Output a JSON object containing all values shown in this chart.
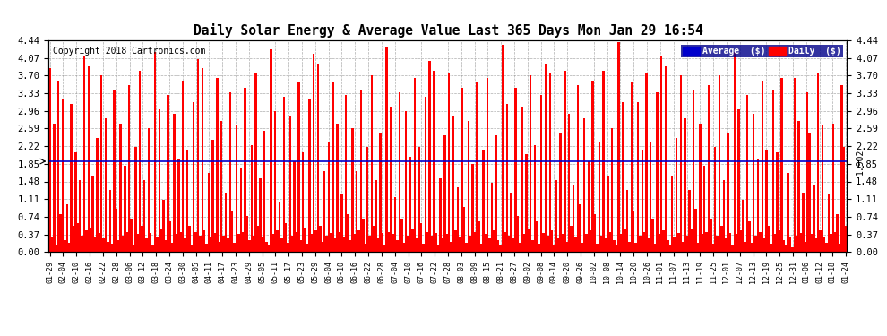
{
  "title": "Daily Solar Energy & Average Value Last 365 Days Mon Jan 29 16:54",
  "copyright": "Copyright 2018 Cartronics.com",
  "average_value": 1.902,
  "average_label": "1.902",
  "y_max": 4.44,
  "y_min": 0.0,
  "y_ticks": [
    0.0,
    0.37,
    0.74,
    1.11,
    1.48,
    1.85,
    2.22,
    2.59,
    2.96,
    3.33,
    3.7,
    4.07,
    4.44
  ],
  "bar_color": "#ff0000",
  "average_line_color": "#0000cc",
  "background_color": "#ffffff",
  "grid_color": "#999999",
  "legend_avg_color": "#0000cc",
  "legend_daily_color": "#ff0000",
  "legend_avg_text": "Average  ($)",
  "legend_daily_text": "Daily  ($)",
  "x_tick_labels": [
    "01-29",
    "02-04",
    "02-10",
    "02-16",
    "02-22",
    "02-28",
    "03-06",
    "03-12",
    "03-18",
    "03-24",
    "03-30",
    "04-05",
    "04-11",
    "04-17",
    "04-23",
    "04-29",
    "05-05",
    "05-11",
    "05-17",
    "05-23",
    "05-29",
    "06-04",
    "06-10",
    "06-16",
    "06-22",
    "06-28",
    "07-04",
    "07-10",
    "07-16",
    "07-22",
    "07-28",
    "08-03",
    "08-09",
    "08-15",
    "08-21",
    "08-27",
    "09-02",
    "09-08",
    "09-14",
    "09-20",
    "09-26",
    "10-02",
    "10-08",
    "10-14",
    "10-20",
    "10-26",
    "11-01",
    "11-07",
    "11-13",
    "11-19",
    "11-25",
    "12-01",
    "12-07",
    "12-13",
    "12-19",
    "12-25",
    "12-31",
    "01-06",
    "01-12",
    "01-18",
    "01-24"
  ],
  "bar_values": [
    3.85,
    0.3,
    2.7,
    0.15,
    3.6,
    0.8,
    3.2,
    0.25,
    1.0,
    0.2,
    3.1,
    0.55,
    2.1,
    0.6,
    1.5,
    0.35,
    4.1,
    0.45,
    3.9,
    0.5,
    1.6,
    0.3,
    2.4,
    0.4,
    3.7,
    0.28,
    2.8,
    0.22,
    1.3,
    0.18,
    3.4,
    0.9,
    0.25,
    2.7,
    0.35,
    1.8,
    0.42,
    3.5,
    0.7,
    0.15,
    2.2,
    0.38,
    3.8,
    0.55,
    1.5,
    0.28,
    2.6,
    0.4,
    0.15,
    4.2,
    0.32,
    3.0,
    0.48,
    1.1,
    0.25,
    3.3,
    0.65,
    0.2,
    2.9,
    0.38,
    1.95,
    0.42,
    3.6,
    0.28,
    2.15,
    0.55,
    0.15,
    3.15,
    0.42,
    4.05,
    0.35,
    3.85,
    0.45,
    0.18,
    1.65,
    0.3,
    2.35,
    0.4,
    3.65,
    0.22,
    2.75,
    0.35,
    1.25,
    0.28,
    3.35,
    0.85,
    0.2,
    2.65,
    0.38,
    1.75,
    0.42,
    3.45,
    0.75,
    0.25,
    2.25,
    0.35,
    3.75,
    0.55,
    1.55,
    0.3,
    2.55,
    0.22,
    0.15,
    4.25,
    0.38,
    2.95,
    0.45,
    1.05,
    0.28,
    3.25,
    0.6,
    0.2,
    2.85,
    0.35,
    1.9,
    0.42,
    3.55,
    0.25,
    2.1,
    0.5,
    0.18,
    3.2,
    0.38,
    4.15,
    0.45,
    3.95,
    0.55,
    0.22,
    1.7,
    0.35,
    2.3,
    0.4,
    3.55,
    0.28,
    2.7,
    0.42,
    1.2,
    0.3,
    3.3,
    0.8,
    0.25,
    2.6,
    0.38,
    1.7,
    0.45,
    3.4,
    0.7,
    0.18,
    2.2,
    0.35,
    3.7,
    0.55,
    1.5,
    0.28,
    2.5,
    0.4,
    0.15,
    4.3,
    0.42,
    3.05,
    0.38,
    1.15,
    0.25,
    3.35,
    0.7,
    0.2,
    2.95,
    0.35,
    2.0,
    0.48,
    3.65,
    0.28,
    2.2,
    0.6,
    0.18,
    3.25,
    0.42,
    4.0,
    0.35,
    3.8,
    0.4,
    0.15,
    1.55,
    0.28,
    2.45,
    0.38,
    3.75,
    0.22,
    2.85,
    0.45,
    1.35,
    0.3,
    3.45,
    0.95,
    0.2,
    2.75,
    0.35,
    1.85,
    0.42,
    3.55,
    0.65,
    0.18,
    2.15,
    0.38,
    3.65,
    0.28,
    1.45,
    0.45,
    2.45,
    0.25,
    0.15,
    4.35,
    0.42,
    3.1,
    0.35,
    1.25,
    0.28,
    3.45,
    0.75,
    0.2,
    3.05,
    0.38,
    2.05,
    0.48,
    3.7,
    0.25,
    2.25,
    0.65,
    0.18,
    3.3,
    0.4,
    3.95,
    0.35,
    3.75,
    0.45,
    0.15,
    1.5,
    0.28,
    2.5,
    0.38,
    3.8,
    0.22,
    2.9,
    0.55,
    1.4,
    0.3,
    3.5,
    1.0,
    0.2,
    2.8,
    0.38,
    1.9,
    0.45,
    3.6,
    0.8,
    0.18,
    2.3,
    0.35,
    3.8,
    0.28,
    1.6,
    0.42,
    2.6,
    0.25,
    0.15,
    4.4,
    0.38,
    3.15,
    0.48,
    1.3,
    0.22,
    3.55,
    0.85,
    0.2,
    3.15,
    0.35,
    2.15,
    0.42,
    3.75,
    0.28,
    2.3,
    0.7,
    0.18,
    3.35,
    0.38,
    4.1,
    0.45,
    3.9,
    0.25,
    0.15,
    1.6,
    0.3,
    2.4,
    0.4,
    3.7,
    0.22,
    2.8,
    0.35,
    1.3,
    0.48,
    3.4,
    0.9,
    0.2,
    2.7,
    0.38,
    1.8,
    0.42,
    3.5,
    0.7,
    0.18,
    2.2,
    0.35,
    3.7,
    0.55,
    1.5,
    0.28,
    2.5,
    0.4,
    0.15,
    4.2,
    0.38,
    3.0,
    0.45,
    1.1,
    0.22,
    3.3,
    0.65,
    0.2,
    2.9,
    0.35,
    1.95,
    0.42,
    3.6,
    0.28,
    2.15,
    0.55,
    0.18,
    3.4,
    0.38,
    2.1,
    0.45,
    3.65,
    0.25,
    0.15,
    1.65,
    0.3,
    0.1,
    3.65,
    0.35,
    2.75,
    0.4,
    1.25,
    0.22,
    3.35,
    2.5,
    0.38,
    1.4,
    0.28,
    3.75,
    0.45,
    2.65,
    0.3,
    0.2,
    1.2,
    0.38,
    2.7,
    0.42,
    0.8,
    0.18,
    3.5,
    2.2,
    0.55
  ]
}
